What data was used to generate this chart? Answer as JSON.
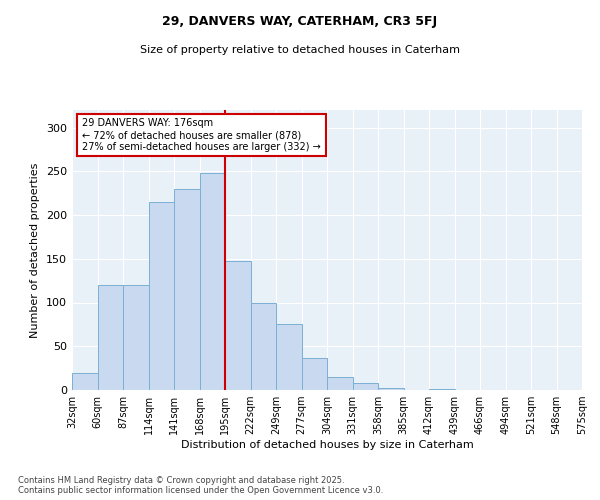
{
  "title_line1": "29, DANVERS WAY, CATERHAM, CR3 5FJ",
  "title_line2": "Size of property relative to detached houses in Caterham",
  "xlabel": "Distribution of detached houses by size in Caterham",
  "ylabel": "Number of detached properties",
  "bar_color": "#c9d9f0",
  "bar_edge_color": "#7aafd4",
  "background_color": "#e8f0f8",
  "grid_color": "#ffffff",
  "vline_x": 6,
  "vline_color": "#cc0000",
  "annotation_box_text": "29 DANVERS WAY: 176sqm\n← 72% of detached houses are smaller (878)\n27% of semi-detached houses are larger (332) →",
  "annotation_box_color": "#cc0000",
  "bin_heights": [
    20,
    120,
    120,
    215,
    230,
    248,
    148,
    100,
    75,
    37,
    15,
    8,
    2,
    0,
    1,
    0,
    0,
    0,
    0,
    0
  ],
  "tick_labels": [
    "32sqm",
    "60sqm",
    "87sqm",
    "114sqm",
    "141sqm",
    "168sqm",
    "195sqm",
    "222sqm",
    "249sqm",
    "277sqm",
    "304sqm",
    "331sqm",
    "358sqm",
    "385sqm",
    "412sqm",
    "439sqm",
    "466sqm",
    "494sqm",
    "521sqm",
    "548sqm",
    "575sqm"
  ],
  "yticks": [
    0,
    50,
    100,
    150,
    200,
    250,
    300
  ],
  "ylim": [
    0,
    320
  ],
  "footer_line1": "Contains HM Land Registry data © Crown copyright and database right 2025.",
  "footer_line2": "Contains public sector information licensed under the Open Government Licence v3.0."
}
